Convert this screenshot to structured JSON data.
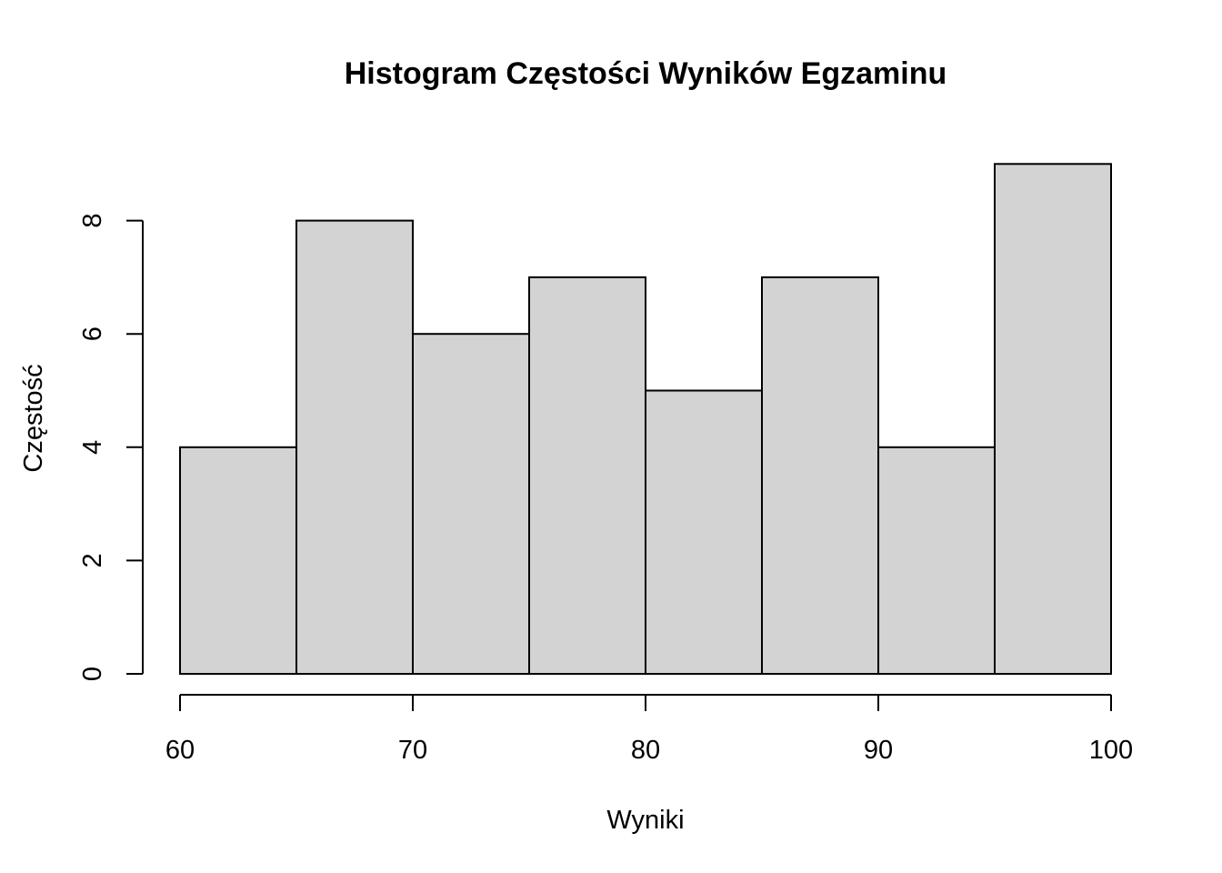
{
  "chart_data": {
    "type": "bar",
    "title": "Histogram Częstości Wyników Egzaminu",
    "xlabel": "Wyniki",
    "ylabel": "Częstość",
    "bins": [
      {
        "start": 60,
        "end": 65,
        "count": 4
      },
      {
        "start": 65,
        "end": 70,
        "count": 8
      },
      {
        "start": 70,
        "end": 75,
        "count": 6
      },
      {
        "start": 75,
        "end": 80,
        "count": 7
      },
      {
        "start": 80,
        "end": 85,
        "count": 5
      },
      {
        "start": 85,
        "end": 90,
        "count": 7
      },
      {
        "start": 90,
        "end": 95,
        "count": 4
      },
      {
        "start": 95,
        "end": 100,
        "count": 9
      }
    ],
    "xlim": [
      60,
      100
    ],
    "ylim": [
      0,
      9
    ],
    "x_ticks": [
      "60",
      "70",
      "80",
      "90",
      "100"
    ],
    "y_ticks": [
      "0",
      "2",
      "4",
      "6",
      "8"
    ],
    "bar_color": "#d3d3d3",
    "grid": false,
    "legend": "none"
  }
}
